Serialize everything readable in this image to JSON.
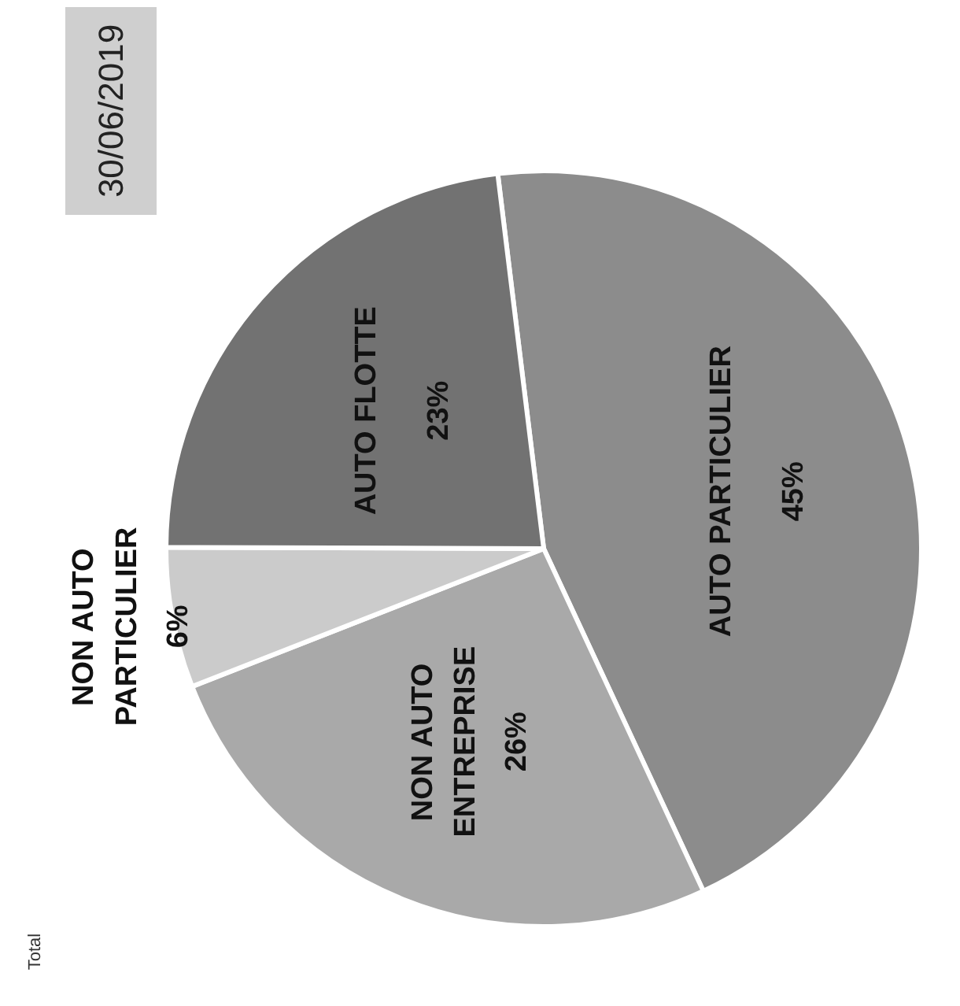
{
  "chart_data": {
    "type": "pie",
    "title": "30/06/2019",
    "categories": [
      "AUTO PARTICULIER",
      "NON AUTO ENTREPRISE",
      "NON AUTO PARTICULIER",
      "AUTO FLOTTE"
    ],
    "values": [
      45,
      26,
      6,
      23
    ],
    "colors": [
      "#8c8c8c",
      "#a9a9a9",
      "#cbcbcb",
      "#727272"
    ],
    "value_labels": [
      "45%",
      "26%",
      "6%",
      "23%"
    ],
    "annotations": [
      "Total"
    ]
  }
}
